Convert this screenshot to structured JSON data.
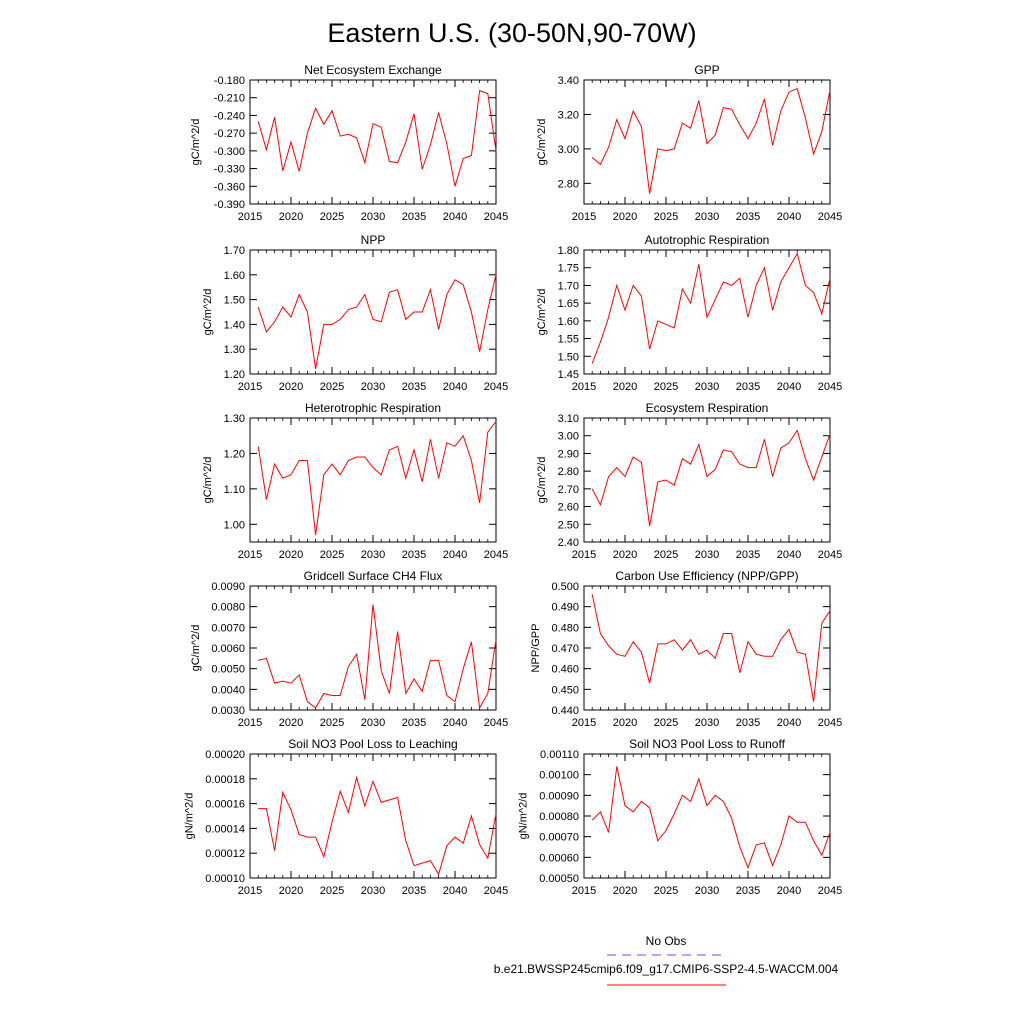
{
  "page": {
    "title": "Eastern U.S. (30-50N,90-70W)"
  },
  "legend": {
    "obs_label": "No Obs",
    "obs_color": "#5555ff",
    "model_label": "b.e21.BWSSP245cmip6.f09_g17.CMIP6-SSP2-4.5-WACCM.004",
    "model_color": "#ff0000"
  },
  "chart_data": [
    {
      "type": "line",
      "title": "Net Ecosystem Exchange",
      "ylabel": "gC/m^2/d",
      "xlim": [
        2015,
        2045
      ],
      "xticks": [
        2015,
        2020,
        2025,
        2030,
        2035,
        2040,
        2045
      ],
      "ylim": [
        -0.39,
        -0.18
      ],
      "yticks": [
        "-0.180",
        "-0.210",
        "-0.240",
        "-0.270",
        "-0.300",
        "-0.330",
        "-0.360",
        "-0.390"
      ],
      "x": [
        2016,
        2017,
        2018,
        2019,
        2020,
        2021,
        2022,
        2023,
        2024,
        2025,
        2026,
        2027,
        2028,
        2029,
        2030,
        2031,
        2032,
        2033,
        2034,
        2035,
        2036,
        2037,
        2038,
        2039,
        2040,
        2041,
        2042,
        2043,
        2044,
        2045
      ],
      "series": [
        {
          "color": "#ff0000",
          "values": [
            -0.25,
            -0.298,
            -0.243,
            -0.334,
            -0.285,
            -0.335,
            -0.27,
            -0.228,
            -0.255,
            -0.232,
            -0.275,
            -0.272,
            -0.278,
            -0.32,
            -0.254,
            -0.26,
            -0.318,
            -0.32,
            -0.285,
            -0.237,
            -0.331,
            -0.29,
            -0.235,
            -0.288,
            -0.36,
            -0.313,
            -0.308,
            -0.198,
            -0.203,
            -0.3
          ]
        }
      ]
    },
    {
      "type": "line",
      "title": "GPP",
      "ylabel": "gC/m^2/d",
      "xlim": [
        2015,
        2045
      ],
      "xticks": [
        2015,
        2020,
        2025,
        2030,
        2035,
        2040,
        2045
      ],
      "ylim": [
        2.68,
        3.4
      ],
      "yticks": [
        "3.40",
        "3.20",
        "3.00",
        "2.80"
      ],
      "x": [
        2016,
        2017,
        2018,
        2019,
        2020,
        2021,
        2022,
        2023,
        2024,
        2025,
        2026,
        2027,
        2028,
        2029,
        2030,
        2031,
        2032,
        2033,
        2034,
        2035,
        2036,
        2037,
        2038,
        2039,
        2040,
        2041,
        2042,
        2043,
        2044,
        2045
      ],
      "series": [
        {
          "color": "#ff0000",
          "values": [
            2.95,
            2.91,
            3.01,
            3.17,
            3.06,
            3.22,
            3.13,
            2.74,
            3.0,
            2.99,
            3.0,
            3.15,
            3.12,
            3.28,
            3.03,
            3.08,
            3.24,
            3.23,
            3.14,
            3.06,
            3.15,
            3.29,
            3.02,
            3.22,
            3.33,
            3.35,
            3.18,
            2.97,
            3.1,
            3.34
          ]
        }
      ]
    },
    {
      "type": "line",
      "title": "NPP",
      "ylabel": "gC/m^2/d",
      "xlim": [
        2015,
        2045
      ],
      "xticks": [
        2015,
        2020,
        2025,
        2030,
        2035,
        2040,
        2045
      ],
      "ylim": [
        1.2,
        1.7
      ],
      "yticks": [
        "1.70",
        "1.60",
        "1.50",
        "1.40",
        "1.30",
        "1.20"
      ],
      "x": [
        2016,
        2017,
        2018,
        2019,
        2020,
        2021,
        2022,
        2023,
        2024,
        2025,
        2026,
        2027,
        2028,
        2029,
        2030,
        2031,
        2032,
        2033,
        2034,
        2035,
        2036,
        2037,
        2038,
        2039,
        2040,
        2041,
        2042,
        2043,
        2044,
        2045
      ],
      "series": [
        {
          "color": "#ff0000",
          "values": [
            1.47,
            1.37,
            1.41,
            1.47,
            1.43,
            1.52,
            1.45,
            1.22,
            1.4,
            1.4,
            1.42,
            1.46,
            1.47,
            1.52,
            1.42,
            1.41,
            1.53,
            1.54,
            1.42,
            1.45,
            1.45,
            1.54,
            1.38,
            1.52,
            1.58,
            1.56,
            1.45,
            1.29,
            1.46,
            1.6
          ]
        }
      ]
    },
    {
      "type": "line",
      "title": "Autotrophic Respiration",
      "ylabel": "gC/m^2/d",
      "xlim": [
        2015,
        2045
      ],
      "xticks": [
        2015,
        2020,
        2025,
        2030,
        2035,
        2040,
        2045
      ],
      "ylim": [
        1.45,
        1.8
      ],
      "yticks": [
        "1.80",
        "1.75",
        "1.70",
        "1.65",
        "1.60",
        "1.55",
        "1.50",
        "1.45"
      ],
      "x": [
        2016,
        2017,
        2018,
        2019,
        2020,
        2021,
        2022,
        2023,
        2024,
        2025,
        2026,
        2027,
        2028,
        2029,
        2030,
        2031,
        2032,
        2033,
        2034,
        2035,
        2036,
        2037,
        2038,
        2039,
        2040,
        2041,
        2042,
        2043,
        2044,
        2045
      ],
      "series": [
        {
          "color": "#ff0000",
          "values": [
            1.48,
            1.54,
            1.61,
            1.7,
            1.63,
            1.7,
            1.67,
            1.52,
            1.6,
            1.59,
            1.58,
            1.69,
            1.65,
            1.76,
            1.61,
            1.66,
            1.71,
            1.7,
            1.72,
            1.61,
            1.7,
            1.75,
            1.63,
            1.71,
            1.75,
            1.79,
            1.7,
            1.68,
            1.62,
            1.72
          ]
        }
      ]
    },
    {
      "type": "line",
      "title": "Heterotrophic Respiration",
      "ylabel": "gC/m^2/d",
      "xlim": [
        2015,
        2045
      ],
      "xticks": [
        2015,
        2020,
        2025,
        2030,
        2035,
        2040,
        2045
      ],
      "ylim": [
        0.95,
        1.3
      ],
      "yticks": [
        "1.30",
        "1.20",
        "1.10",
        "1.00"
      ],
      "x": [
        2016,
        2017,
        2018,
        2019,
        2020,
        2021,
        2022,
        2023,
        2024,
        2025,
        2026,
        2027,
        2028,
        2029,
        2030,
        2031,
        2032,
        2033,
        2034,
        2035,
        2036,
        2037,
        2038,
        2039,
        2040,
        2041,
        2042,
        2043,
        2044,
        2045
      ],
      "series": [
        {
          "color": "#ff0000",
          "values": [
            1.22,
            1.07,
            1.17,
            1.13,
            1.14,
            1.18,
            1.18,
            0.97,
            1.14,
            1.17,
            1.14,
            1.18,
            1.19,
            1.19,
            1.16,
            1.14,
            1.21,
            1.22,
            1.13,
            1.21,
            1.12,
            1.24,
            1.13,
            1.23,
            1.22,
            1.25,
            1.18,
            1.06,
            1.26,
            1.29
          ]
        }
      ]
    },
    {
      "type": "line",
      "title": "Ecosystem Respiration",
      "ylabel": "gC/m^2/d",
      "xlim": [
        2015,
        2045
      ],
      "xticks": [
        2015,
        2020,
        2025,
        2030,
        2035,
        2040,
        2045
      ],
      "ylim": [
        2.4,
        3.1
      ],
      "yticks": [
        "3.10",
        "3.00",
        "2.90",
        "2.80",
        "2.70",
        "2.60",
        "2.50",
        "2.40"
      ],
      "x": [
        2016,
        2017,
        2018,
        2019,
        2020,
        2021,
        2022,
        2023,
        2024,
        2025,
        2026,
        2027,
        2028,
        2029,
        2030,
        2031,
        2032,
        2033,
        2034,
        2035,
        2036,
        2037,
        2038,
        2039,
        2040,
        2041,
        2042,
        2043,
        2044,
        2045
      ],
      "series": [
        {
          "color": "#ff0000",
          "values": [
            2.7,
            2.61,
            2.77,
            2.82,
            2.77,
            2.88,
            2.85,
            2.49,
            2.74,
            2.75,
            2.72,
            2.87,
            2.84,
            2.95,
            2.77,
            2.81,
            2.92,
            2.91,
            2.84,
            2.82,
            2.82,
            2.98,
            2.77,
            2.93,
            2.96,
            3.03,
            2.87,
            2.75,
            2.88,
            3.01
          ]
        }
      ]
    },
    {
      "type": "line",
      "title": "Gridcell Surface CH4 Flux",
      "ylabel": "gC/m^2/d",
      "xlim": [
        2015,
        2045
      ],
      "xticks": [
        2015,
        2020,
        2025,
        2030,
        2035,
        2040,
        2045
      ],
      "ylim": [
        0.003,
        0.009
      ],
      "yticks": [
        "0.0090",
        "0.0080",
        "0.0070",
        "0.0060",
        "0.0050",
        "0.0040",
        "0.0030"
      ],
      "x": [
        2016,
        2017,
        2018,
        2019,
        2020,
        2021,
        2022,
        2023,
        2024,
        2025,
        2026,
        2027,
        2028,
        2029,
        2030,
        2031,
        2032,
        2033,
        2034,
        2035,
        2036,
        2037,
        2038,
        2039,
        2040,
        2041,
        2042,
        2043,
        2044,
        2045
      ],
      "series": [
        {
          "color": "#ff0000",
          "values": [
            0.0054,
            0.0055,
            0.0043,
            0.0044,
            0.0043,
            0.0047,
            0.0034,
            0.0031,
            0.0038,
            0.0037,
            0.0037,
            0.0051,
            0.0057,
            0.0035,
            0.0081,
            0.0049,
            0.0038,
            0.0068,
            0.0038,
            0.0045,
            0.0039,
            0.0054,
            0.0054,
            0.0037,
            0.0034,
            0.005,
            0.0063,
            0.0031,
            0.0038,
            0.0064
          ]
        }
      ]
    },
    {
      "type": "line",
      "title": "Carbon Use Efficiency (NPP/GPP)",
      "ylabel": "NPP/GPP",
      "xlim": [
        2015,
        2045
      ],
      "xticks": [
        2015,
        2020,
        2025,
        2030,
        2035,
        2040,
        2045
      ],
      "ylim": [
        0.44,
        0.5
      ],
      "yticks": [
        "0.500",
        "0.490",
        "0.480",
        "0.470",
        "0.460",
        "0.450",
        "0.440"
      ],
      "x": [
        2016,
        2017,
        2018,
        2019,
        2020,
        2021,
        2022,
        2023,
        2024,
        2025,
        2026,
        2027,
        2028,
        2029,
        2030,
        2031,
        2032,
        2033,
        2034,
        2035,
        2036,
        2037,
        2038,
        2039,
        2040,
        2041,
        2042,
        2043,
        2044,
        2045
      ],
      "series": [
        {
          "color": "#ff0000",
          "values": [
            0.496,
            0.477,
            0.471,
            0.467,
            0.466,
            0.473,
            0.468,
            0.453,
            0.472,
            0.472,
            0.474,
            0.469,
            0.474,
            0.467,
            0.469,
            0.465,
            0.477,
            0.477,
            0.458,
            0.473,
            0.467,
            0.466,
            0.466,
            0.474,
            0.479,
            0.468,
            0.467,
            0.444,
            0.482,
            0.488
          ]
        }
      ]
    },
    {
      "type": "line",
      "title": "Soil NO3 Pool Loss to Leaching",
      "ylabel": "gN/m^2/d",
      "xlim": [
        2015,
        2045
      ],
      "xticks": [
        2015,
        2020,
        2025,
        2030,
        2035,
        2040,
        2045
      ],
      "ylim": [
        0.0001,
        0.0002
      ],
      "yticks": [
        "0.00020",
        "0.00018",
        "0.00016",
        "0.00014",
        "0.00012",
        "0.00010"
      ],
      "x": [
        2016,
        2017,
        2018,
        2019,
        2020,
        2021,
        2022,
        2023,
        2024,
        2025,
        2026,
        2027,
        2028,
        2029,
        2030,
        2031,
        2032,
        2033,
        2034,
        2035,
        2036,
        2037,
        2038,
        2039,
        2040,
        2041,
        2042,
        2043,
        2044,
        2045
      ],
      "series": [
        {
          "color": "#ff0000",
          "values": [
            0.000156,
            0.000156,
            0.000122,
            0.000169,
            0.000155,
            0.000135,
            0.000133,
            0.000133,
            0.000117,
            0.000145,
            0.00017,
            0.000153,
            0.000181,
            0.000158,
            0.000178,
            0.000161,
            0.000163,
            0.000165,
            0.00013,
            0.00011,
            0.000112,
            0.000114,
            0.000103,
            0.000126,
            0.000133,
            0.000128,
            0.00015,
            0.000127,
            0.000116,
            0.000152
          ]
        }
      ]
    },
    {
      "type": "line",
      "title": "Soil NO3 Pool Loss to Runoff",
      "ylabel": "gN/m^2/d",
      "xlim": [
        2015,
        2045
      ],
      "xticks": [
        2015,
        2020,
        2025,
        2030,
        2035,
        2040,
        2045
      ],
      "ylim": [
        0.0005,
        0.0011
      ],
      "yticks": [
        "0.00110",
        "0.00100",
        "0.00090",
        "0.00080",
        "0.00070",
        "0.00060",
        "0.00050"
      ],
      "x": [
        2016,
        2017,
        2018,
        2019,
        2020,
        2021,
        2022,
        2023,
        2024,
        2025,
        2026,
        2027,
        2028,
        2029,
        2030,
        2031,
        2032,
        2033,
        2034,
        2035,
        2036,
        2037,
        2038,
        2039,
        2040,
        2041,
        2042,
        2043,
        2044,
        2045
      ],
      "series": [
        {
          "color": "#ff0000",
          "values": [
            0.00078,
            0.00082,
            0.00072,
            0.00104,
            0.00085,
            0.00082,
            0.00087,
            0.00084,
            0.00068,
            0.00073,
            0.00081,
            0.0009,
            0.00087,
            0.00098,
            0.00085,
            0.0009,
            0.00087,
            0.00079,
            0.00065,
            0.00055,
            0.00066,
            0.00067,
            0.00056,
            0.00066,
            0.0008,
            0.00077,
            0.00077,
            0.00068,
            0.00061,
            0.00072
          ]
        }
      ]
    }
  ]
}
